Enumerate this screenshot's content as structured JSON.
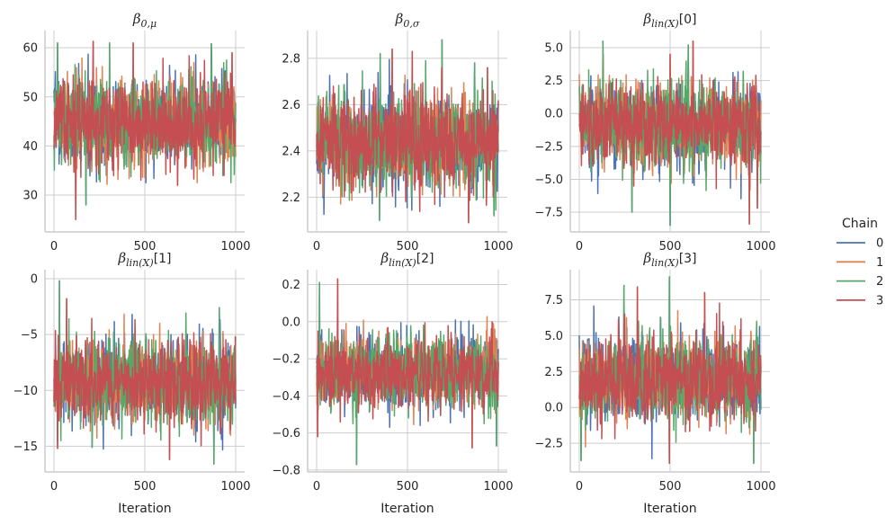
{
  "chart_data": {
    "type": "line",
    "xlabel": "Iteration",
    "legend": {
      "title": "Chain",
      "position": "right",
      "entries": [
        "0",
        "1",
        "2",
        "3"
      ],
      "colors": [
        "#4c72b0",
        "#dd8452",
        "#55a868",
        "#c44e52"
      ]
    },
    "x_range": [
      0,
      1000
    ],
    "x_ticks": [
      0,
      500,
      1000
    ],
    "grid": true,
    "panels": [
      {
        "title_main": "β",
        "title_sub": "0,μ",
        "title_suffix": "",
        "ylim": [
          22.5,
          63.5
        ],
        "yticks": [
          30,
          40,
          50,
          60
        ],
        "ytick_labels": [
          "30",
          "40",
          "50",
          "60"
        ],
        "center": 45,
        "spread": 4.4,
        "min": 25,
        "max": 61,
        "peaks": [
          [
            20,
            61
          ],
          [
            215,
            61.3
          ],
          [
            305,
            61
          ],
          [
            435,
            61
          ],
          [
            865,
            60.8
          ],
          [
            980,
            59
          ],
          [
            75,
            38
          ],
          [
            120,
            25
          ],
          [
            175,
            28
          ],
          [
            680,
            32
          ],
          [
            930,
            34
          ]
        ]
      },
      {
        "title_main": "β",
        "title_sub": "0,σ",
        "title_suffix": "",
        "ylim": [
          2.05,
          2.92
        ],
        "yticks": [
          2.2,
          2.4,
          2.6,
          2.8
        ],
        "ytick_labels": [
          "2.2",
          "2.4",
          "2.6",
          "2.8"
        ],
        "center": 2.44,
        "spread": 0.1,
        "min": 2.09,
        "max": 2.88,
        "peaks": [
          [
            350,
            2.82
          ],
          [
            525,
            2.83
          ],
          [
            690,
            2.88
          ],
          [
            415,
            2.84
          ],
          [
            870,
            2.78
          ],
          [
            940,
            2.76
          ],
          [
            345,
            2.1
          ],
          [
            835,
            2.09
          ],
          [
            975,
            2.12
          ]
        ]
      },
      {
        "title_main": "β",
        "title_sub": "lin(X)",
        "title_suffix": "[0]",
        "ylim": [
          -9,
          6.3
        ],
        "yticks": [
          -7.5,
          -5.0,
          -2.5,
          0.0,
          2.5,
          5.0
        ],
        "ytick_labels": [
          "−7.5",
          "−5.0",
          "−2.5",
          "0.0",
          "2.5",
          "5.0"
        ],
        "center": -0.9,
        "spread": 1.6,
        "min": -8.5,
        "max": 5.7,
        "peaks": [
          [
            130,
            5.5
          ],
          [
            500,
            4.5
          ],
          [
            600,
            5.2
          ],
          [
            625,
            5.5
          ],
          [
            500,
            -8.5
          ],
          [
            935,
            -8.4
          ],
          [
            290,
            -7.5
          ],
          [
            980,
            -7.2
          ]
        ]
      },
      {
        "title_main": "β",
        "title_sub": "lin(X)",
        "title_suffix": "[1]",
        "ylim": [
          -17.3,
          0.8
        ],
        "yticks": [
          -15,
          -10,
          -5,
          0
        ],
        "ytick_labels": [
          "−15",
          "−10",
          "−5",
          "0"
        ],
        "center": -9.2,
        "spread": 1.9,
        "min": -16.6,
        "max": -0.1,
        "peaks": [
          [
            30,
            -0.2
          ],
          [
            70,
            -1.8
          ],
          [
            910,
            -2.6
          ],
          [
            635,
            -16.2
          ],
          [
            880,
            -16.6
          ],
          [
            20,
            -15.2
          ],
          [
            210,
            -15.1
          ]
        ]
      },
      {
        "title_main": "β",
        "title_sub": "lin(X)",
        "title_suffix": "[2]",
        "ylim": [
          -0.81,
          0.28
        ],
        "yticks": [
          -0.8,
          -0.6,
          -0.4,
          -0.2,
          0.0,
          0.2
        ],
        "ytick_labels": [
          "−0.8",
          "−0.6",
          "−0.4",
          "−0.2",
          "0.0",
          "0.2"
        ],
        "center": -0.27,
        "spread": 0.1,
        "min": -0.77,
        "max": 0.23,
        "peaks": [
          [
            15,
            0.21
          ],
          [
            115,
            0.23
          ],
          [
            220,
            -0.77
          ],
          [
            855,
            -0.68
          ],
          [
            990,
            -0.67
          ],
          [
            5,
            -0.62
          ]
        ]
      },
      {
        "title_main": "β",
        "title_sub": "lin(X)",
        "title_suffix": "[3]",
        "ylim": [
          -4.5,
          9.6
        ],
        "yticks": [
          -2.5,
          0.0,
          2.5,
          5.0,
          7.5
        ],
        "ytick_labels": [
          "−2.5",
          "0.0",
          "2.5",
          "5.0",
          "7.5"
        ],
        "center": 2.0,
        "spread": 1.5,
        "min": -4.0,
        "max": 9.1,
        "peaks": [
          [
            245,
            8.5
          ],
          [
            320,
            8.4
          ],
          [
            495,
            9.1
          ],
          [
            690,
            8.0
          ],
          [
            10,
            -3.7
          ],
          [
            495,
            -3.9
          ],
          [
            960,
            -3.9
          ]
        ]
      }
    ]
  }
}
